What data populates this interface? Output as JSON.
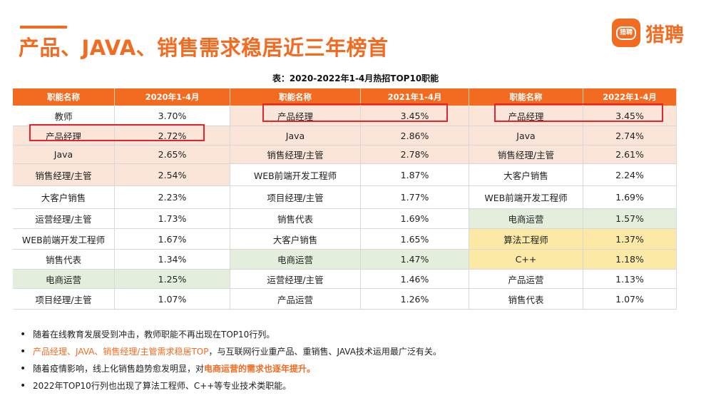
{
  "header": {
    "title": "产品、JAVA、销售需求稳居近三年榜首",
    "logo_mark": "猎聘",
    "logo_text": "猎聘"
  },
  "caption": "表：2020-2022年1-4月热招TOP10职能",
  "tables": [
    {
      "col_name": "职能名称",
      "col_pct": "2020年1-4月",
      "rows": [
        {
          "name": "教师",
          "pct": "3.70%"
        },
        {
          "name": "产品经理",
          "pct": "2.72%"
        },
        {
          "name": "Java",
          "pct": "2.65%"
        },
        {
          "name": "销售经理/主管",
          "pct": "2.54%"
        },
        {
          "name": "大客户销售",
          "pct": "2.23%"
        },
        {
          "name": "运营经理/主管",
          "pct": "1.73%"
        },
        {
          "name": "WEB前端开发工程师",
          "pct": "1.67%"
        },
        {
          "name": "销售代表",
          "pct": "1.34%"
        },
        {
          "name": "电商运营",
          "pct": "1.25%"
        },
        {
          "name": "项目经理/主管",
          "pct": "1.07%"
        }
      ]
    },
    {
      "col_name": "职能名称",
      "col_pct": "2021年1-4月",
      "rows": [
        {
          "name": "产品经理",
          "pct": "3.45%"
        },
        {
          "name": "Java",
          "pct": "2.86%"
        },
        {
          "name": "销售经理/主管",
          "pct": "2.78%"
        },
        {
          "name": "WEB前端开发工程师",
          "pct": "1.87%"
        },
        {
          "name": "项目经理/主管",
          "pct": "1.77%"
        },
        {
          "name": "销售代表",
          "pct": "1.69%"
        },
        {
          "name": "大客户销售",
          "pct": "1.65%"
        },
        {
          "name": "电商运营",
          "pct": "1.47%"
        },
        {
          "name": "运营经理/主管",
          "pct": "1.46%"
        },
        {
          "name": "产品运营",
          "pct": "1.26%"
        }
      ]
    },
    {
      "col_name": "职能名称",
      "col_pct": "2022年1-4月",
      "rows": [
        {
          "name": "产品经理",
          "pct": "3.45%"
        },
        {
          "name": "Java",
          "pct": "2.74%"
        },
        {
          "name": "销售经理/主管",
          "pct": "2.61%"
        },
        {
          "name": "大客户销售",
          "pct": "2.24%"
        },
        {
          "name": "WEB前端开发工程师",
          "pct": "1.69%"
        },
        {
          "name": "电商运营",
          "pct": "1.57%"
        },
        {
          "name": "算法工程师",
          "pct": "1.37%"
        },
        {
          "name": "C++",
          "pct": "1.18%"
        },
        {
          "name": "产品运营",
          "pct": "1.13%"
        },
        {
          "name": "销售代表",
          "pct": "1.07%"
        }
      ]
    }
  ],
  "notes": {
    "n1": "随着在线教育发展受到冲击，教师职能不再出现在TOP10行列。",
    "n2_highlight": "产品经理、JAVA、销售经理/主管需求稳居TOP",
    "n2_rest": "，与互联网行业重产品、重销售、JAVA技术运用最广泛有关。",
    "n3_start": "随着疫情影响，线上化销售趋势愈发明显，对",
    "n3_highlight": "电商运营的需求也逐年提升。",
    "n4": "2022年TOP10行列也出现了算法工程师、C++等专业技术类职能。",
    "bullet": "•"
  },
  "colors": {
    "accent": "#f26b21",
    "highlight_box": "#e0262c",
    "row_pink": "#fbe5d9",
    "row_green": "#e3efdc",
    "row_yellow": "#fbe9a5"
  }
}
